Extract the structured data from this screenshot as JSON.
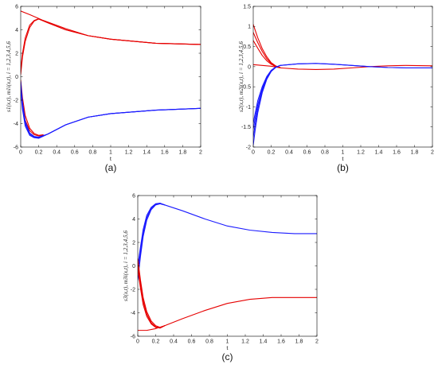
{
  "chart_data": [
    {
      "id": "a",
      "type": "line",
      "caption": "(a)",
      "xlabel": "t",
      "ylabel": "s1(x,t), m1i(x,t), i = 1,2,3,4,5,6",
      "xlim": [
        0,
        2
      ],
      "ylim": [
        -6,
        6
      ],
      "xticks": [
        0,
        0.2,
        0.4,
        0.6,
        0.8,
        1,
        1.2,
        1.4,
        1.6,
        1.8,
        2
      ],
      "yticks": [
        -6,
        -4,
        -2,
        0,
        2,
        4,
        6
      ],
      "tick_labels_x": [
        "0",
        "0.2",
        "0.4",
        "0.6",
        "0.8",
        "1",
        "1.2",
        "1.4",
        "1.6",
        "1.8",
        "2"
      ],
      "tick_labels_y": [
        "-6",
        "-4",
        "-2",
        "0",
        "2",
        "4",
        "6"
      ],
      "series": [
        {
          "color": "#e60000",
          "x": [
            0,
            0.1,
            0.25,
            0.5,
            0.75,
            1,
            1.5,
            2
          ],
          "y": [
            5.6,
            5.3,
            4.8,
            4.1,
            3.5,
            3.2,
            2.85,
            2.75
          ]
        },
        {
          "color": "#e60000",
          "x": [
            0,
            0.02,
            0.05,
            0.1,
            0.15,
            0.2,
            0.3,
            0.5,
            0.75,
            1,
            1.5,
            2
          ],
          "y": [
            0.6,
            2.0,
            3.3,
            4.4,
            4.8,
            4.95,
            4.6,
            4.0,
            3.5,
            3.2,
            2.85,
            2.75
          ]
        },
        {
          "color": "#e60000",
          "x": [
            0,
            0.02,
            0.05,
            0.1,
            0.15,
            0.2,
            0.3,
            0.5,
            0.75,
            1,
            1.5,
            2
          ],
          "y": [
            0.2,
            1.7,
            3.0,
            4.2,
            4.75,
            4.92,
            4.6,
            4.0,
            3.5,
            3.2,
            2.85,
            2.75
          ]
        },
        {
          "color": "#e60000",
          "x": [
            0,
            0.02,
            0.05,
            0.1,
            0.15,
            0.2,
            0.25
          ],
          "y": [
            -0.3,
            -1.8,
            -3.3,
            -4.4,
            -4.85,
            -5.0,
            -4.95
          ]
        },
        {
          "color": "#e60000",
          "x": [
            0,
            0.02,
            0.05,
            0.1,
            0.15,
            0.2,
            0.25
          ],
          "y": [
            -0.8,
            -2.3,
            -3.7,
            -4.6,
            -4.95,
            -5.05,
            -5.0
          ]
        },
        {
          "color": "#1a1aff",
          "x": [
            0,
            0.02,
            0.05,
            0.1,
            0.15,
            0.2,
            0.3,
            0.5,
            0.75,
            1,
            1.5,
            2
          ],
          "y": [
            -0.4,
            -2.2,
            -3.8,
            -4.8,
            -5.1,
            -5.15,
            -4.9,
            -4.1,
            -3.45,
            -3.15,
            -2.85,
            -2.7
          ]
        },
        {
          "color": "#1a1aff",
          "x": [
            0,
            0.02,
            0.05,
            0.1,
            0.15,
            0.2,
            0.3,
            0.5,
            0.75,
            1,
            1.5,
            2
          ],
          "y": [
            -0.8,
            -2.5,
            -4.0,
            -4.9,
            -5.15,
            -5.2,
            -4.9,
            -4.1,
            -3.45,
            -3.15,
            -2.85,
            -2.7
          ]
        },
        {
          "color": "#1a1aff",
          "x": [
            0,
            0.02,
            0.05,
            0.1,
            0.15,
            0.2,
            0.3,
            0.5,
            0.75,
            1,
            1.5,
            2
          ],
          "y": [
            -1.2,
            -2.8,
            -4.2,
            -5.0,
            -5.2,
            -5.25,
            -4.9,
            -4.1,
            -3.45,
            -3.15,
            -2.85,
            -2.7
          ]
        }
      ]
    },
    {
      "id": "b",
      "type": "line",
      "caption": "(b)",
      "xlabel": "t",
      "ylabel": "s2(x,t), m2i(x,t), i = 1,2,3,4,5,6",
      "xlim": [
        0,
        2
      ],
      "ylim": [
        -2,
        1.5
      ],
      "xticks": [
        0,
        0.2,
        0.4,
        0.6,
        0.8,
        1,
        1.2,
        1.4,
        1.6,
        1.8,
        2
      ],
      "yticks": [
        -2,
        -1.5,
        -1,
        -0.5,
        0,
        0.5,
        1,
        1.5
      ],
      "tick_labels_x": [
        "0",
        "0.2",
        "0.4",
        "0.6",
        "0.8",
        "1",
        "1.2",
        "1.4",
        "1.6",
        "1.8",
        "2"
      ],
      "tick_labels_y": [
        "-2",
        "-1.5",
        "-1",
        "-0.5",
        "0",
        "0.5",
        "1",
        "1.5"
      ],
      "series": [
        {
          "color": "#e60000",
          "x": [
            0,
            0.05,
            0.1,
            0.15,
            0.2,
            0.25,
            0.3
          ],
          "y": [
            1.05,
            0.72,
            0.45,
            0.25,
            0.1,
            0.02,
            -0.02
          ]
        },
        {
          "color": "#e60000",
          "x": [
            0,
            0.05,
            0.1,
            0.15,
            0.2,
            0.25,
            0.3
          ],
          "y": [
            0.85,
            0.6,
            0.38,
            0.2,
            0.08,
            0.01,
            -0.02
          ]
        },
        {
          "color": "#e60000",
          "x": [
            0,
            0.05,
            0.1,
            0.15,
            0.2,
            0.25,
            0.3
          ],
          "y": [
            0.65,
            0.46,
            0.28,
            0.15,
            0.06,
            0.0,
            -0.02
          ]
        },
        {
          "color": "#e60000",
          "x": [
            0,
            0.1,
            0.2,
            0.3,
            0.5,
            0.7,
            0.9,
            1.1,
            1.3,
            1.5,
            1.7,
            2
          ],
          "y": [
            0.05,
            0.03,
            0.01,
            -0.03,
            -0.06,
            -0.07,
            -0.06,
            -0.03,
            0.0,
            0.02,
            0.03,
            0.02
          ]
        },
        {
          "color": "#1a1aff",
          "x": [
            0,
            0.02,
            0.05,
            0.1,
            0.15,
            0.2,
            0.25,
            0.3,
            0.5,
            0.7,
            0.9,
            1.1,
            1.3,
            1.5,
            1.7,
            2
          ],
          "y": [
            -1.95,
            -1.6,
            -1.15,
            -0.65,
            -0.32,
            -0.12,
            -0.02,
            0.03,
            0.07,
            0.08,
            0.06,
            0.03,
            0.0,
            -0.02,
            -0.03,
            -0.03
          ]
        },
        {
          "color": "#1a1aff",
          "x": [
            0,
            0.02,
            0.05,
            0.1,
            0.15,
            0.2,
            0.25,
            0.3,
            0.5,
            0.7,
            0.9,
            1.1,
            1.3,
            1.5,
            1.7,
            2
          ],
          "y": [
            -1.75,
            -1.45,
            -1.05,
            -0.6,
            -0.3,
            -0.11,
            -0.02,
            0.03,
            0.07,
            0.08,
            0.06,
            0.03,
            0.0,
            -0.02,
            -0.03,
            -0.03
          ]
        },
        {
          "color": "#1a1aff",
          "x": [
            0,
            0.02,
            0.05,
            0.1,
            0.15,
            0.2,
            0.25,
            0.3
          ],
          "y": [
            -1.55,
            -1.3,
            -0.95,
            -0.55,
            -0.27,
            -0.1,
            -0.02,
            0.03
          ]
        },
        {
          "color": "#1a1aff",
          "x": [
            0,
            0.02,
            0.05,
            0.1,
            0.15,
            0.2,
            0.25,
            0.3
          ],
          "y": [
            -1.4,
            -1.18,
            -0.85,
            -0.5,
            -0.25,
            -0.09,
            -0.01,
            0.03
          ]
        }
      ]
    },
    {
      "id": "c",
      "type": "line",
      "caption": "(c)",
      "xlabel": "t",
      "ylabel": "s3(x,t), m3i(x,t), i = 1,2,3,4,5,6",
      "xlim": [
        0,
        2
      ],
      "ylim": [
        -6,
        6
      ],
      "xticks": [
        0,
        0.2,
        0.4,
        0.6,
        0.8,
        1,
        1.2,
        1.4,
        1.6,
        1.8,
        2
      ],
      "yticks": [
        -6,
        -4,
        -2,
        0,
        2,
        4,
        6
      ],
      "tick_labels_x": [
        "0",
        "0.2",
        "0.4",
        "0.6",
        "0.8",
        "1",
        "1.2",
        "1.4",
        "1.6",
        "1.8",
        "2"
      ],
      "tick_labels_y": [
        "-6",
        "-4",
        "-2",
        "0",
        "2",
        "4",
        "6"
      ],
      "series": [
        {
          "color": "#1a1aff",
          "x": [
            0,
            0.03,
            0.06,
            0.1,
            0.15,
            0.2,
            0.25,
            0.3,
            0.5,
            0.75,
            1,
            1.25,
            1.5,
            1.75,
            2
          ],
          "y": [
            -1.2,
            0.8,
            2.5,
            3.9,
            4.8,
            5.2,
            5.3,
            5.2,
            4.7,
            4.0,
            3.4,
            3.05,
            2.85,
            2.75,
            2.75
          ]
        },
        {
          "color": "#1a1aff",
          "x": [
            0,
            0.03,
            0.06,
            0.1,
            0.15,
            0.2,
            0.25,
            0.3
          ],
          "y": [
            -0.6,
            1.2,
            2.8,
            4.1,
            4.9,
            5.25,
            5.3,
            5.2
          ]
        },
        {
          "color": "#1a1aff",
          "x": [
            0,
            0.03,
            0.06,
            0.1,
            0.15,
            0.2,
            0.25,
            0.3
          ],
          "y": [
            0.0,
            1.6,
            3.1,
            4.3,
            5.0,
            5.3,
            5.35,
            5.2
          ]
        },
        {
          "color": "#e60000",
          "x": [
            0,
            0.1,
            0.2,
            0.3,
            0.5,
            0.75,
            1,
            1.25,
            1.5,
            1.75,
            2
          ],
          "y": [
            -5.5,
            -5.5,
            -5.35,
            -5.1,
            -4.5,
            -3.8,
            -3.2,
            -2.85,
            -2.7,
            -2.7,
            -2.7
          ]
        },
        {
          "color": "#e60000",
          "x": [
            0,
            0.03,
            0.06,
            0.1,
            0.15,
            0.2,
            0.25,
            0.3
          ],
          "y": [
            0.6,
            -1.2,
            -2.7,
            -3.9,
            -4.7,
            -5.1,
            -5.25,
            -5.1
          ]
        },
        {
          "color": "#e60000",
          "x": [
            0,
            0.03,
            0.06,
            0.1,
            0.15,
            0.2,
            0.25,
            0.3
          ],
          "y": [
            0.2,
            -1.5,
            -3.0,
            -4.1,
            -4.85,
            -5.2,
            -5.3,
            -5.1
          ]
        },
        {
          "color": "#e60000",
          "x": [
            0,
            0.03,
            0.06,
            0.1,
            0.15,
            0.2,
            0.25,
            0.3
          ],
          "y": [
            -0.3,
            -1.9,
            -3.3,
            -4.3,
            -4.95,
            -5.25,
            -5.3,
            -5.1
          ]
        }
      ]
    }
  ]
}
